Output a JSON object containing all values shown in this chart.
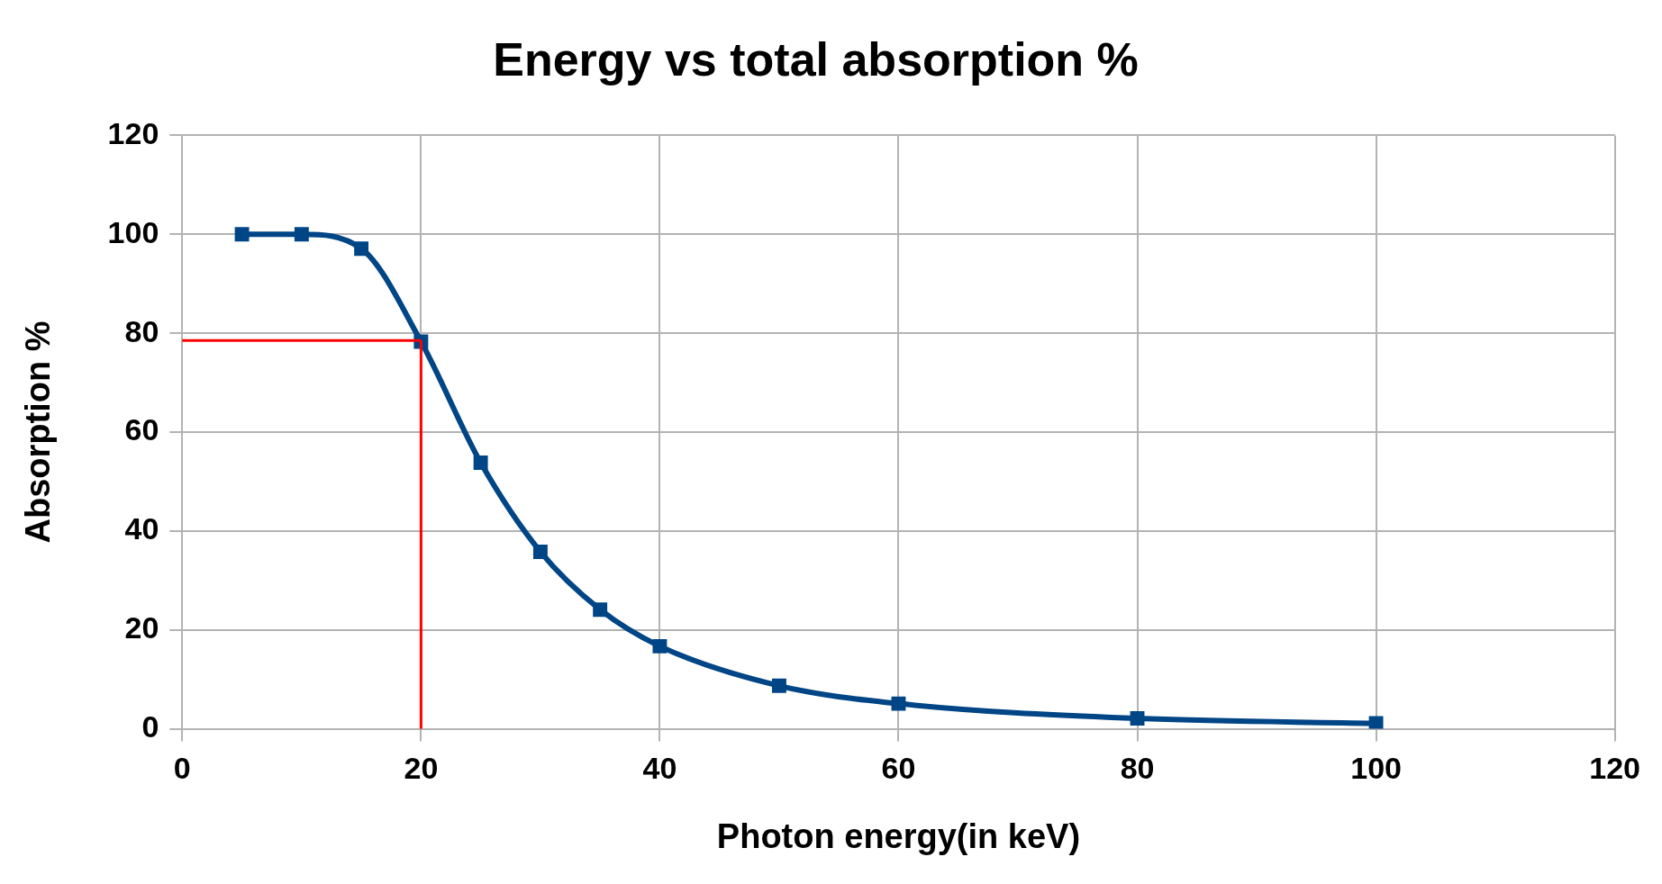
{
  "chart_data": {
    "type": "line",
    "title": "Energy vs total absorption %",
    "xlabel": "Photon energy(in keV)",
    "ylabel": "Absorption %",
    "x": [
      5,
      10,
      15,
      20,
      25,
      30,
      35,
      40,
      50,
      60,
      80,
      100
    ],
    "series": [
      {
        "color": "#004586",
        "values": [
          100,
          100,
          97.1,
          78.3,
          53.8,
          35.8,
          24.1,
          16.7,
          8.7,
          5.1,
          2.1,
          1.1
        ]
      }
    ],
    "xlim": [
      0,
      120
    ],
    "xticks": [
      0,
      20,
      40,
      60,
      80,
      100,
      120
    ],
    "ylim": [
      0,
      120
    ],
    "yticks": [
      0,
      20,
      40,
      60,
      80,
      100,
      120
    ],
    "grid": true,
    "legend": false,
    "marker": "square",
    "line_style": "solid",
    "ref_lines": [
      {
        "axis": "x",
        "value": 20,
        "color": "#ff0000"
      },
      {
        "axis": "y",
        "value": 78.5,
        "color": "#ff0000"
      }
    ]
  }
}
